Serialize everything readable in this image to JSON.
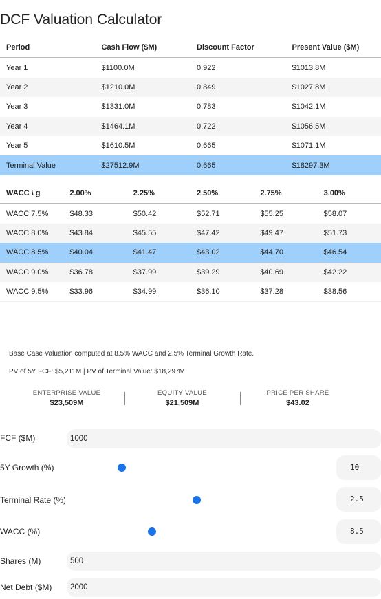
{
  "title": "DCF Valuation Calculator",
  "cash_flow_table": {
    "header": [
      "Period",
      "Cash Flow ($M)",
      "Discount Factor",
      "Present Value ($M)"
    ],
    "rows": [
      [
        "Year 1",
        "$1100.0M",
        "0.922",
        "$1013.8M"
      ],
      [
        "Year 2",
        "$1210.0M",
        "0.849",
        "$1027.8M"
      ],
      [
        "Year 3",
        "$1331.0M",
        "0.783",
        "$1042.1M"
      ],
      [
        "Year 4",
        "$1464.1M",
        "0.722",
        "$1056.5M"
      ],
      [
        "Year 5",
        "$1610.5M",
        "0.665",
        "$1071.1M"
      ],
      [
        "Terminal Value",
        "$27512.9M",
        "0.665",
        "$18297.3M"
      ]
    ]
  },
  "sensitivity_table": {
    "header": [
      "WACC \\ g",
      "2.00%",
      "2.25%",
      "2.50%",
      "2.75%",
      "3.00%"
    ],
    "rows": [
      [
        "WACC 7.5%",
        "$48.33",
        "$50.42",
        "$52.71",
        "$55.25",
        "$58.07"
      ],
      [
        "WACC 8.0%",
        "$43.84",
        "$45.55",
        "$47.42",
        "$49.47",
        "$51.73"
      ],
      [
        "WACC 8.5%",
        "$40.04",
        "$41.47",
        "$43.02",
        "$44.70",
        "$46.54"
      ],
      [
        "WACC 9.0%",
        "$36.78",
        "$37.99",
        "$39.29",
        "$40.69",
        "$42.22"
      ],
      [
        "WACC 9.5%",
        "$33.96",
        "$34.99",
        "$36.10",
        "$37.28",
        "$38.56"
      ]
    ]
  },
  "notes": [
    "Base Case Valuation computed at 8.5% WACC and 2.5% Terminal Growth Rate.",
    "PV of 5Y FCF: $5,211M | PV of Terminal Value: $18,297M"
  ],
  "metrics": [
    {
      "label": "ENTERPRISE VALUE",
      "value": "$23,509M"
    },
    {
      "label": "EQUITY VALUE",
      "value": "$21,509M"
    },
    {
      "label": "PRICE PER SHARE",
      "value": "$43.02"
    }
  ],
  "inputs": [
    {
      "label": "FCF ($M)",
      "value": "1000"
    },
    {
      "label": "5Y Growth (%)",
      "value": "10"
    },
    {
      "label": "Terminal Rate (%)",
      "value": "2.5"
    },
    {
      "label": "WACC (%)",
      "value": "8.5"
    },
    {
      "label": "Shares (M)",
      "value": "500"
    },
    {
      "label": "Net Debt ($M)",
      "value": "2000"
    }
  ]
}
